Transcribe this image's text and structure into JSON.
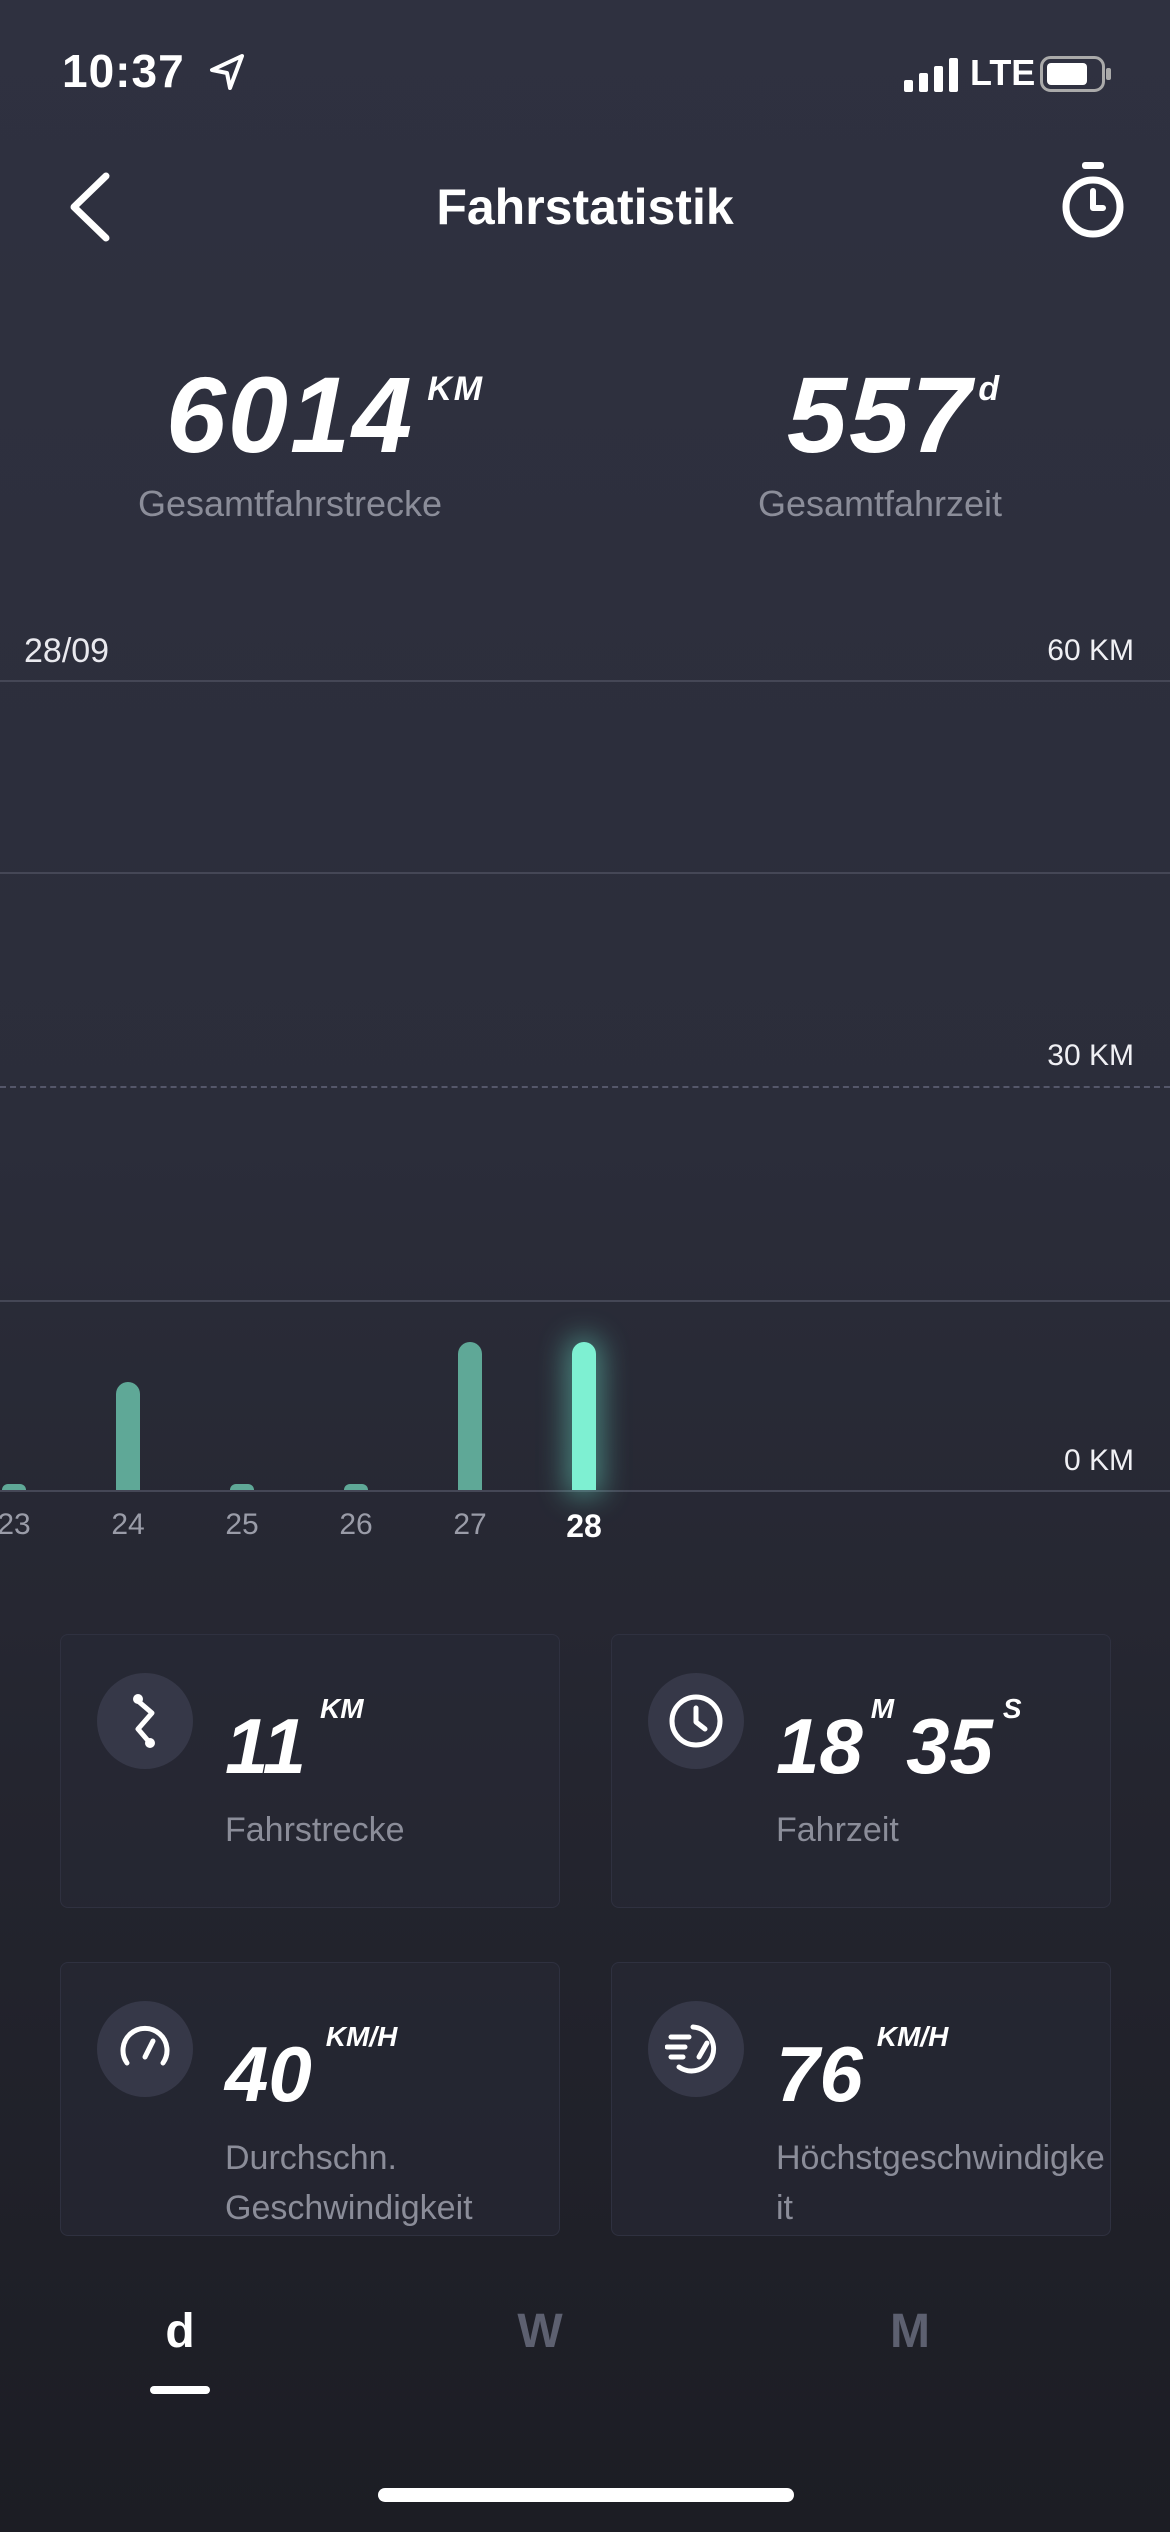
{
  "status_bar": {
    "time": "10:37",
    "network": "LTE",
    "icons": [
      "location-arrow-icon",
      "signal-icon",
      "battery-icon"
    ]
  },
  "header": {
    "title": "Fahrstatistik",
    "back_icon": "chevron-left-icon",
    "timer_icon": "stopwatch-icon"
  },
  "totals": {
    "distance": {
      "value": "6014",
      "unit": "KM",
      "label": "Gesamtfahrstrecke"
    },
    "time": {
      "value": "557",
      "unit": "d",
      "label": "Gesamtfahrzeit"
    }
  },
  "chart": {
    "selected_date": "28/09",
    "axis_labels": [
      "60 KM",
      "30 KM",
      "0 KM"
    ],
    "colors": {
      "bar": "#5fa897",
      "bar_active": "#7ef0d2"
    }
  },
  "chart_data": {
    "type": "bar",
    "categories": [
      "23",
      "24",
      "25",
      "26",
      "27",
      "28"
    ],
    "values": [
      0.2,
      8,
      0.2,
      0.2,
      11,
      11
    ],
    "selected_category": "28",
    "ylabel": "",
    "ylim": [
      0,
      60
    ],
    "yticks": [
      "0 KM",
      "30 KM",
      "60 KM"
    ],
    "grid": true
  },
  "stats": [
    {
      "icon": "route-icon",
      "value": "11",
      "unit": "KM",
      "label": "Fahrstrecke"
    },
    {
      "icon": "clock-icon",
      "value_parts": [
        {
          "value": "18",
          "unit": "M"
        },
        {
          "value": "35",
          "unit": "S"
        }
      ],
      "label": "Fahrzeit"
    },
    {
      "icon": "speedometer-icon",
      "value": "40",
      "unit": "KM/H",
      "label": "Durchschn. Geschwindigkeit"
    },
    {
      "icon": "fast-speed-icon",
      "value": "76",
      "unit": "KM/H",
      "label": "Höchstgeschwindigkeit"
    }
  ],
  "period_tabs": [
    {
      "label": "d",
      "active": true
    },
    {
      "label": "W",
      "active": false
    },
    {
      "label": "M",
      "active": false
    }
  ]
}
